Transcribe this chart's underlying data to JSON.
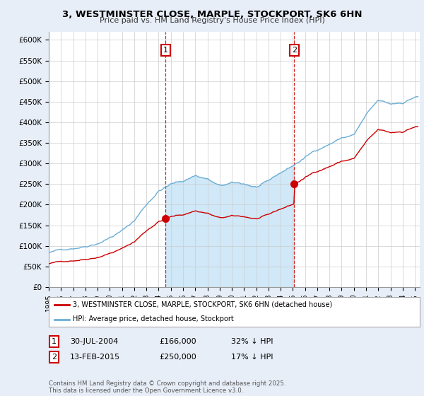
{
  "title_line1": "3, WESTMINSTER CLOSE, MARPLE, STOCKPORT, SK6 6HN",
  "title_line2": "Price paid vs. HM Land Registry's House Price Index (HPI)",
  "ylim": [
    0,
    620000
  ],
  "yticks": [
    0,
    50000,
    100000,
    150000,
    200000,
    250000,
    300000,
    350000,
    400000,
    450000,
    500000,
    550000,
    600000
  ],
  "ytick_labels": [
    "£0",
    "£50K",
    "£100K",
    "£150K",
    "£200K",
    "£250K",
    "£300K",
    "£350K",
    "£400K",
    "£450K",
    "£500K",
    "£550K",
    "£600K"
  ],
  "hpi_color": "#6baed6",
  "hpi_fill_color": "#d0e8f7",
  "price_color": "#cc0000",
  "sale1_year": 2004.58,
  "sale1_price": 166000,
  "sale2_year": 2015.12,
  "sale2_price": 250000,
  "legend_line1": "3, WESTMINSTER CLOSE, MARPLE, STOCKPORT, SK6 6HN (detached house)",
  "legend_line2": "HPI: Average price, detached house, Stockport",
  "table_row1": [
    "1",
    "30-JUL-2004",
    "£166,000",
    "32% ↓ HPI"
  ],
  "table_row2": [
    "2",
    "13-FEB-2015",
    "£250,000",
    "17% ↓ HPI"
  ],
  "footnote": "Contains HM Land Registry data © Crown copyright and database right 2025.\nThis data is licensed under the Open Government Licence v3.0.",
  "background_color": "#e8eef8",
  "plot_bg_color": "#ffffff",
  "xlim_start": 1995.0,
  "xlim_end": 2025.4
}
